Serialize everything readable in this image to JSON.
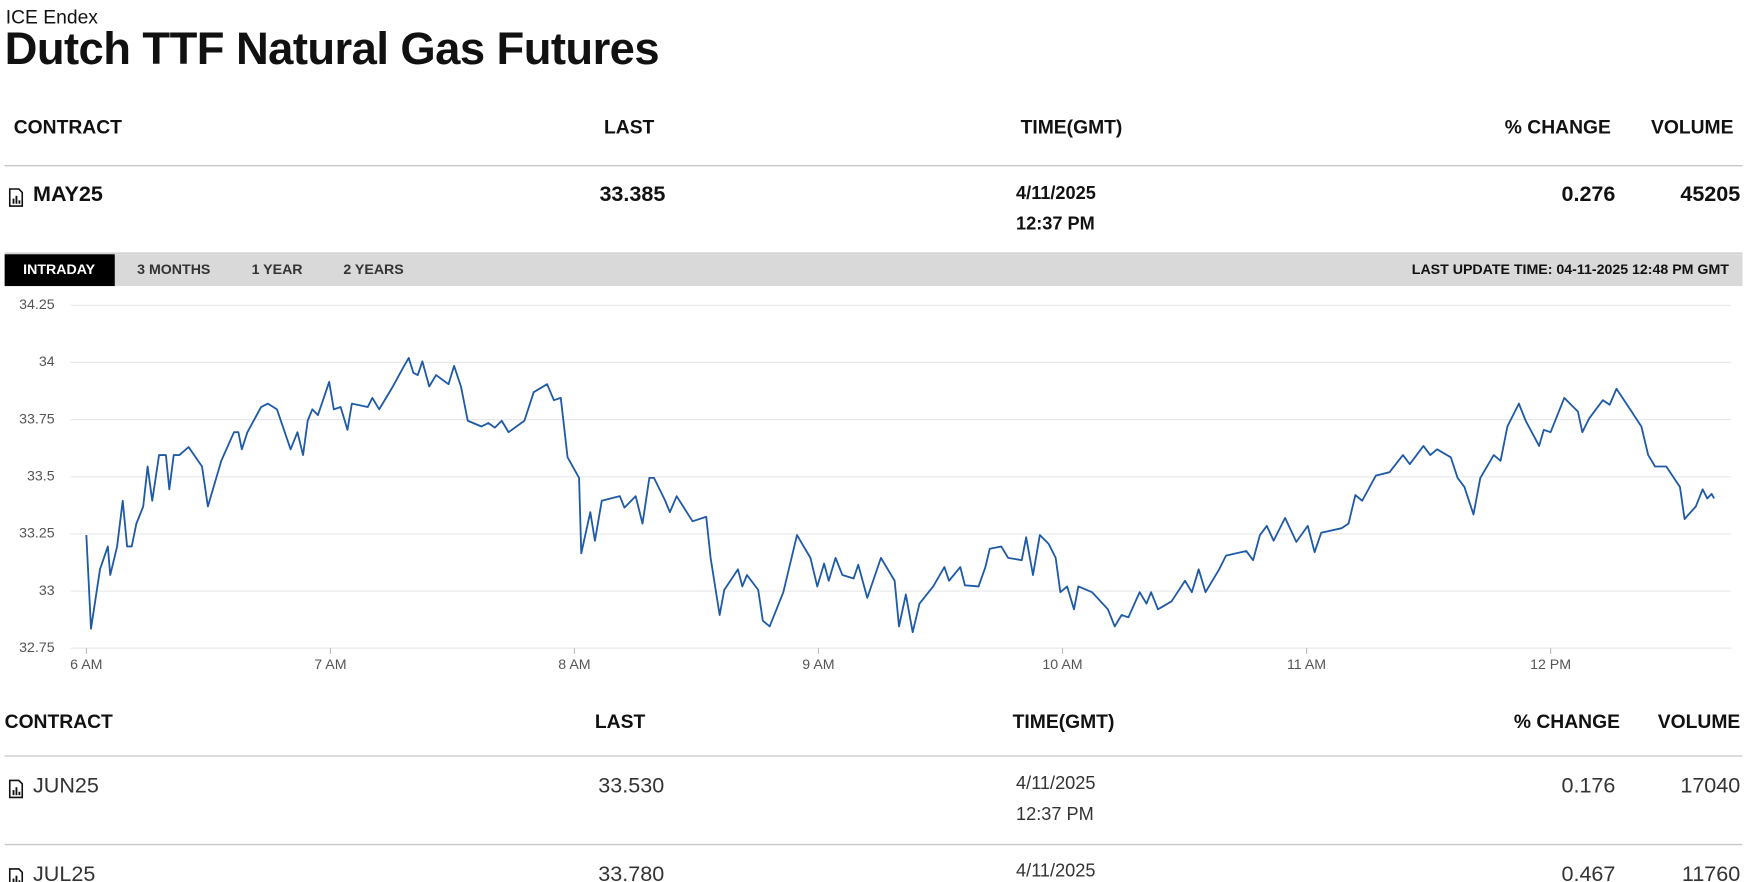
{
  "header": {
    "exchange": "ICE Endex",
    "title": "Dutch TTF Natural Gas Futures"
  },
  "table_top": {
    "columns": [
      "CONTRACT",
      "LAST",
      "TIME(GMT)",
      "% CHANGE",
      "VOLUME"
    ],
    "rows": [
      {
        "contract": "MAY25",
        "last": "33.385",
        "date": "4/11/2025",
        "time": "12:37 PM",
        "change": "0.276",
        "volume": "45205"
      }
    ]
  },
  "tabs": [
    "INTRADAY",
    "3 MONTHS",
    "1 YEAR",
    "2 YEARS"
  ],
  "last_update": "LAST UPDATE TIME: 04-11-2025 12:48 PM GMT",
  "chart_data": {
    "type": "line",
    "color": "#1f5aa6",
    "x": [
      6.0,
      6.019,
      6.056,
      6.088,
      6.098,
      6.126,
      6.149,
      6.167,
      6.186,
      6.205,
      6.233,
      6.251,
      6.27,
      6.298,
      6.326,
      6.34,
      6.358,
      6.381,
      6.419,
      6.474,
      6.498,
      6.553,
      6.605,
      6.623,
      6.637,
      6.66,
      6.716,
      6.744,
      6.781,
      6.837,
      6.865,
      6.888,
      6.907,
      6.926,
      6.949,
      6.995,
      7.014,
      7.042,
      7.07,
      7.088,
      7.153,
      7.172,
      7.2,
      7.256,
      7.302,
      7.321,
      7.34,
      7.358,
      7.377,
      7.405,
      7.433,
      7.484,
      7.507,
      7.535,
      7.563,
      7.619,
      7.647,
      7.674,
      7.702,
      7.73,
      7.795,
      7.833,
      7.888,
      7.916,
      7.944,
      7.972,
      8.019,
      8.028,
      8.065,
      8.084,
      8.112,
      8.186,
      8.205,
      8.251,
      8.279,
      8.307,
      8.326,
      8.372,
      8.391,
      8.419,
      8.484,
      8.54,
      8.558,
      8.595,
      8.614,
      8.67,
      8.688,
      8.707,
      8.753,
      8.772,
      8.8,
      8.856,
      8.912,
      8.967,
      8.995,
      9.023,
      9.042,
      9.07,
      9.098,
      9.144,
      9.163,
      9.2,
      9.256,
      9.312,
      9.33,
      9.358,
      9.386,
      9.414,
      9.47,
      9.516,
      9.535,
      9.581,
      9.6,
      9.656,
      9.684,
      9.702,
      9.749,
      9.777,
      9.833,
      9.851,
      9.879,
      9.907,
      9.944,
      9.972,
      9.991,
      10.019,
      10.047,
      10.065,
      10.121,
      10.186,
      10.214,
      10.242,
      10.27,
      10.316,
      10.344,
      10.363,
      10.391,
      10.447,
      10.502,
      10.53,
      10.558,
      10.586,
      10.642,
      10.67,
      10.753,
      10.781,
      10.809,
      10.837,
      10.865,
      10.912,
      10.958,
      11.005,
      11.033,
      11.06,
      11.144,
      11.172,
      11.2,
      11.228,
      11.284,
      11.34,
      11.395,
      11.423,
      11.479,
      11.507,
      11.535,
      11.591,
      11.619,
      11.647,
      11.684,
      11.712,
      11.767,
      11.795,
      11.823,
      11.87,
      11.898,
      11.953,
      11.972,
      12.0,
      12.056,
      12.112,
      12.13,
      12.158,
      12.214,
      12.242,
      12.27,
      12.326,
      12.372,
      12.4,
      12.428,
      12.474,
      12.53,
      12.549,
      12.595,
      12.623,
      12.642,
      12.66,
      12.67
    ],
    "values": [
      33.245,
      32.835,
      33.095,
      33.195,
      33.07,
      33.195,
      33.395,
      33.195,
      33.195,
      33.295,
      33.37,
      33.545,
      33.395,
      33.595,
      33.595,
      33.445,
      33.595,
      33.595,
      33.63,
      33.545,
      33.37,
      33.57,
      33.695,
      33.695,
      33.62,
      33.695,
      33.805,
      33.82,
      33.795,
      33.62,
      33.695,
      33.595,
      33.745,
      33.795,
      33.77,
      33.915,
      33.795,
      33.805,
      33.705,
      33.82,
      33.805,
      33.845,
      33.795,
      33.895,
      33.985,
      34.02,
      33.955,
      33.945,
      34.005,
      33.895,
      33.945,
      33.905,
      33.985,
      33.895,
      33.745,
      33.72,
      33.735,
      33.715,
      33.745,
      33.695,
      33.745,
      33.87,
      33.905,
      33.835,
      33.845,
      33.585,
      33.495,
      33.165,
      33.345,
      33.22,
      33.395,
      33.415,
      33.365,
      33.415,
      33.295,
      33.495,
      33.495,
      33.395,
      33.345,
      33.415,
      33.305,
      33.325,
      33.145,
      32.895,
      33.005,
      33.095,
      33.02,
      33.07,
      33.005,
      32.87,
      32.845,
      32.995,
      33.245,
      33.145,
      33.02,
      33.12,
      33.045,
      33.145,
      33.07,
      33.055,
      33.115,
      32.97,
      33.145,
      33.045,
      32.845,
      32.985,
      32.82,
      32.945,
      33.02,
      33.105,
      33.045,
      33.105,
      33.025,
      33.02,
      33.105,
      33.185,
      33.195,
      33.145,
      33.135,
      33.235,
      33.07,
      33.245,
      33.205,
      33.145,
      32.995,
      33.02,
      32.92,
      33.02,
      32.995,
      32.92,
      32.845,
      32.895,
      32.885,
      32.995,
      32.945,
      32.995,
      32.92,
      32.955,
      33.045,
      32.995,
      33.095,
      32.995,
      33.095,
      33.155,
      33.175,
      33.135,
      33.245,
      33.285,
      33.22,
      33.32,
      33.215,
      33.285,
      33.17,
      33.255,
      33.275,
      33.295,
      33.42,
      33.395,
      33.505,
      33.52,
      33.595,
      33.555,
      33.635,
      33.595,
      33.62,
      33.585,
      33.495,
      33.455,
      33.335,
      33.495,
      33.595,
      33.57,
      33.72,
      33.82,
      33.745,
      33.635,
      33.705,
      33.695,
      33.845,
      33.785,
      33.695,
      33.755,
      33.835,
      33.815,
      33.885,
      33.795,
      33.72,
      33.595,
      33.545,
      33.545,
      33.455,
      33.315,
      33.37,
      33.445,
      33.405,
      33.425,
      33.405
    ],
    "xlim": [
      5.935,
      12.74
    ],
    "xticks": [
      {
        "value": 6,
        "label": "6 AM"
      },
      {
        "value": 7,
        "label": "7 AM"
      },
      {
        "value": 8,
        "label": "8 AM"
      },
      {
        "value": 9,
        "label": "9 AM"
      },
      {
        "value": 10,
        "label": "10 AM"
      },
      {
        "value": 11,
        "label": "11 AM"
      },
      {
        "value": 12,
        "label": "12 PM"
      }
    ],
    "ylim": [
      32.75,
      34.25
    ],
    "yticks": [
      32.75,
      33,
      33.25,
      33.5,
      33.75,
      34,
      34.25
    ],
    "grid": true
  },
  "table_bottom": {
    "columns": [
      "CONTRACT",
      "LAST",
      "TIME(GMT)",
      "% CHANGE",
      "VOLUME"
    ],
    "rows": [
      {
        "contract": "JUN25",
        "last": "33.530",
        "date": "4/11/2025",
        "time": "12:37 PM",
        "change": "0.176",
        "volume": "17040"
      },
      {
        "contract": "JUL25",
        "last": "33.780",
        "date": "4/11/2025",
        "change": "0.467",
        "volume": "11760"
      }
    ]
  }
}
